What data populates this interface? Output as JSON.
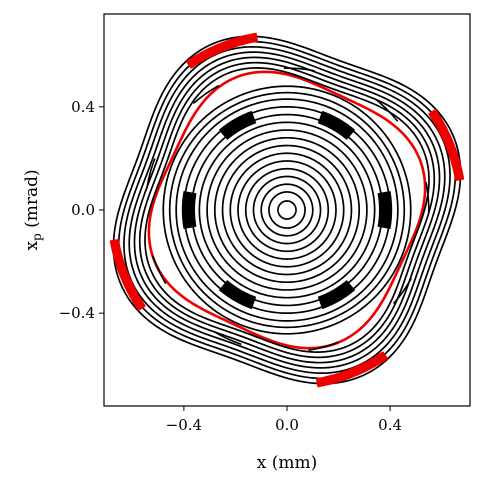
{
  "chart_data": {
    "type": "scatter",
    "title": "",
    "xlabel": "x (mm)",
    "ylabel": "x",
    "ylabel_subscript": "p",
    "ylabel_suffix": " (mrad)",
    "xlim": [
      -0.71,
      0.71
    ],
    "ylim": [
      -0.76,
      0.76
    ],
    "x_ticks": [
      -0.4,
      0.0,
      0.4
    ],
    "y_ticks": [
      -0.4,
      0.0,
      0.4
    ],
    "x_tick_labels": [
      "−0.4",
      "0.0",
      "0.4"
    ],
    "y_tick_labels": [
      "−0.4",
      "0.0",
      "0.4"
    ],
    "grid": false,
    "legend": "none",
    "colors": {
      "orbits": "#000000",
      "highlight": "#ee0000"
    },
    "series": [
      {
        "color": "#000000",
        "kind": "closed-orbit",
        "radii": [
          0.035,
          0.07,
          0.1,
          0.13,
          0.16,
          0.19,
          0.22,
          0.25,
          0.28,
          0.31,
          0.34,
          0.37,
          0.4,
          0.43,
          0.455,
          0.48
        ]
      },
      {
        "color": "#000000",
        "kind": "island-chain",
        "count": 6,
        "radius": 0.38,
        "radius_inner": 0.36,
        "radius_outer": 0.405,
        "arc_deg": 20,
        "phase_deg": 0
      },
      {
        "color": "#ee0000",
        "kind": "separatrix",
        "radius": 0.52,
        "deformation": 0.06,
        "order": 4,
        "phase_deg": 20
      },
      {
        "color": "#000000",
        "kind": "outer-orbit",
        "radii": [
          0.54,
          0.56,
          0.58,
          0.6,
          0.62,
          0.64,
          0.66
        ],
        "deformation": 0.07,
        "order": 4,
        "phase_deg": 25
      },
      {
        "color": "#000000",
        "kind": "island-chain",
        "count": 9,
        "radius": 0.55,
        "radius_inner": 0.55,
        "radius_outer": 0.55,
        "arc_deg": 12,
        "phase_deg": 5
      },
      {
        "color": "#ee0000",
        "kind": "island-chain",
        "count": 4,
        "radius": 0.68,
        "radius_inner": 0.665,
        "radius_outer": 0.695,
        "arc_deg": 24,
        "phase_deg": 22
      }
    ]
  }
}
